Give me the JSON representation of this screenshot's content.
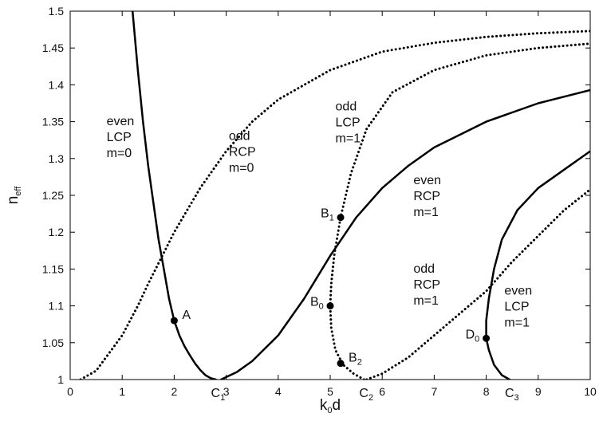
{
  "chart_data": {
    "type": "line",
    "title": "",
    "xlabel": "k",
    "xlabel_sub": "0",
    "xlabel_suffix": "d",
    "ylabel": "n",
    "ylabel_sub": "eff",
    "xlim": [
      0,
      10
    ],
    "ylim": [
      1,
      1.5
    ],
    "grid": false,
    "x_ticks": [
      "0",
      "1",
      "2",
      "3",
      "4",
      "5",
      "6",
      "7",
      "8",
      "9",
      "10"
    ],
    "y_ticks": [
      "1",
      "1.05",
      "1.1",
      "1.15",
      "1.2",
      "1.25",
      "1.3",
      "1.35",
      "1.4",
      "1.45",
      "1.5"
    ],
    "series": [
      {
        "name": "even LCP m=0",
        "style": "solid",
        "color": "#000000",
        "points": [
          [
            1.2,
            1.5
          ],
          [
            1.3,
            1.42
          ],
          [
            1.4,
            1.35
          ],
          [
            1.5,
            1.29
          ],
          [
            1.6,
            1.24
          ],
          [
            1.7,
            1.19
          ],
          [
            1.8,
            1.15
          ],
          [
            1.9,
            1.11
          ],
          [
            2.0,
            1.08
          ],
          [
            2.1,
            1.06
          ],
          [
            2.2,
            1.045
          ],
          [
            2.3,
            1.033
          ],
          [
            2.4,
            1.022
          ],
          [
            2.5,
            1.013
          ],
          [
            2.6,
            1.006
          ],
          [
            2.7,
            1.002
          ],
          [
            2.8,
            1.0
          ]
        ]
      },
      {
        "name": "odd RCP m=0",
        "style": "dotted",
        "color": "#000000",
        "points": [
          [
            0.2,
            1.0
          ],
          [
            0.5,
            1.012
          ],
          [
            1.0,
            1.06
          ],
          [
            1.3,
            1.1
          ],
          [
            1.5,
            1.13
          ],
          [
            2.0,
            1.2
          ],
          [
            2.5,
            1.26
          ],
          [
            3.0,
            1.31
          ],
          [
            3.5,
            1.35
          ],
          [
            4.0,
            1.38
          ],
          [
            5.0,
            1.42
          ],
          [
            6.0,
            1.445
          ],
          [
            7.0,
            1.457
          ],
          [
            8.0,
            1.465
          ],
          [
            9.0,
            1.47
          ],
          [
            10.0,
            1.473
          ]
        ]
      },
      {
        "name": "even RCP m=1",
        "style": "solid",
        "color": "#000000",
        "points": [
          [
            2.9,
            1.0
          ],
          [
            3.2,
            1.01
          ],
          [
            3.5,
            1.025
          ],
          [
            4.0,
            1.06
          ],
          [
            4.5,
            1.11
          ],
          [
            5.0,
            1.168
          ],
          [
            5.5,
            1.22
          ],
          [
            6.0,
            1.26
          ],
          [
            6.5,
            1.29
          ],
          [
            7.0,
            1.315
          ],
          [
            8.0,
            1.35
          ],
          [
            9.0,
            1.375
          ],
          [
            10.0,
            1.393
          ]
        ]
      },
      {
        "name": "odd LCP m=1",
        "style": "dotted",
        "color": "#000000",
        "points": [
          [
            5.65,
            1.0
          ],
          [
            5.45,
            1.008
          ],
          [
            5.25,
            1.02
          ],
          [
            5.1,
            1.04
          ],
          [
            5.02,
            1.07
          ],
          [
            5.0,
            1.1
          ],
          [
            5.02,
            1.13
          ],
          [
            5.08,
            1.17
          ],
          [
            5.2,
            1.22
          ],
          [
            5.4,
            1.28
          ],
          [
            5.7,
            1.34
          ],
          [
            6.2,
            1.39
          ],
          [
            7.0,
            1.42
          ],
          [
            8.0,
            1.44
          ],
          [
            9.0,
            1.45
          ],
          [
            10.0,
            1.456
          ]
        ]
      },
      {
        "name": "odd RCP m=1",
        "style": "dotted",
        "color": "#000000",
        "points": [
          [
            5.7,
            1.0
          ],
          [
            6.0,
            1.008
          ],
          [
            6.5,
            1.03
          ],
          [
            7.0,
            1.06
          ],
          [
            7.5,
            1.09
          ],
          [
            8.0,
            1.12
          ],
          [
            8.5,
            1.16
          ],
          [
            9.0,
            1.195
          ],
          [
            9.5,
            1.23
          ],
          [
            10.0,
            1.258
          ]
        ]
      },
      {
        "name": "even LCP m=1",
        "style": "solid",
        "color": "#000000",
        "points": [
          [
            8.45,
            1.0
          ],
          [
            8.3,
            1.006
          ],
          [
            8.15,
            1.02
          ],
          [
            8.05,
            1.04
          ],
          [
            8.0,
            1.056
          ],
          [
            8.0,
            1.08
          ],
          [
            8.05,
            1.11
          ],
          [
            8.15,
            1.15
          ],
          [
            8.3,
            1.19
          ],
          [
            8.6,
            1.23
          ],
          [
            9.0,
            1.26
          ],
          [
            9.5,
            1.285
          ],
          [
            10.0,
            1.31
          ]
        ]
      }
    ],
    "points": [
      {
        "label": "A",
        "sub": "",
        "x": 2.0,
        "y": 1.08
      },
      {
        "label": "B",
        "sub": "1",
        "x": 5.2,
        "y": 1.22
      },
      {
        "label": "B",
        "sub": "0",
        "x": 5.0,
        "y": 1.1
      },
      {
        "label": "B",
        "sub": "2",
        "x": 5.2,
        "y": 1.022
      },
      {
        "label": "D",
        "sub": "0",
        "x": 8.0,
        "y": 1.056
      }
    ],
    "axis_markers": [
      {
        "label": "C",
        "sub": "1",
        "x": 2.8
      },
      {
        "label": "C",
        "sub": "2",
        "x": 5.65
      },
      {
        "label": "C",
        "sub": "3",
        "x": 8.45
      }
    ],
    "annotations": [
      {
        "lines": [
          "even",
          "LCP",
          "m=0"
        ],
        "x": 0.7,
        "y": 1.345
      },
      {
        "lines": [
          "odd",
          "RCP",
          "m=0"
        ],
        "x": 3.05,
        "y": 1.325
      },
      {
        "lines": [
          "odd",
          "LCP",
          "m=1"
        ],
        "x": 5.1,
        "y": 1.365
      },
      {
        "lines": [
          "even",
          "RCP",
          "m=1"
        ],
        "x": 6.6,
        "y": 1.265
      },
      {
        "lines": [
          "odd",
          "RCP",
          "m=1"
        ],
        "x": 6.6,
        "y": 1.145
      },
      {
        "lines": [
          "even",
          "LCP",
          "m=1"
        ],
        "x": 8.35,
        "y": 1.115
      }
    ]
  }
}
